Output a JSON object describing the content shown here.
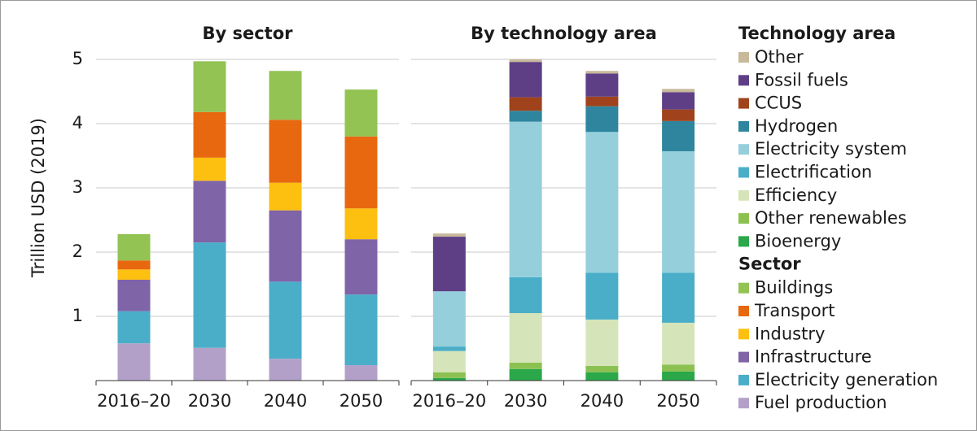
{
  "chart_data": [
    {
      "type": "bar",
      "stacked": true,
      "title": "By sector",
      "y_label": "Trillion USD (2019)",
      "legend_title": "Sector",
      "categories": [
        "2016–20",
        "2030",
        "2040",
        "2050"
      ],
      "ylim": [
        0,
        5.5
      ],
      "yticks": [
        1,
        2,
        3,
        4,
        5
      ],
      "grid": true,
      "series": [
        {
          "name": "Fuel production",
          "color": "#b3a0c9",
          "values": [
            0.58,
            0.51,
            0.34,
            0.24
          ]
        },
        {
          "name": "Electricity generation",
          "color": "#4aaec8",
          "values": [
            0.5,
            1.64,
            1.2,
            1.1
          ]
        },
        {
          "name": "Infrastructure",
          "color": "#8064a8",
          "values": [
            0.49,
            0.96,
            1.11,
            0.86
          ]
        },
        {
          "name": "Industry",
          "color": "#fdc010",
          "values": [
            0.16,
            0.36,
            0.43,
            0.48
          ]
        },
        {
          "name": "Transport",
          "color": "#e8680f",
          "values": [
            0.14,
            0.71,
            0.98,
            1.12
          ]
        },
        {
          "name": "Buildings",
          "color": "#92c353",
          "values": [
            0.41,
            0.79,
            0.76,
            0.73
          ]
        }
      ]
    },
    {
      "type": "bar",
      "stacked": true,
      "title": "By technology area",
      "legend_title": "Technology area",
      "categories": [
        "2016–20",
        "2030",
        "2040",
        "2050"
      ],
      "ylim": [
        0,
        5.5
      ],
      "yticks": [
        1,
        2,
        3,
        4,
        5
      ],
      "grid": true,
      "series": [
        {
          "name": "Bioenergy",
          "color": "#2aa84a",
          "values": [
            0.04,
            0.18,
            0.13,
            0.14
          ]
        },
        {
          "name": "Other renewables",
          "color": "#8cc152",
          "values": [
            0.09,
            0.1,
            0.1,
            0.11
          ]
        },
        {
          "name": "Efficiency",
          "color": "#d6e5b9",
          "values": [
            0.33,
            0.77,
            0.72,
            0.65
          ]
        },
        {
          "name": "Electrification",
          "color": "#4aaec8",
          "values": [
            0.07,
            0.56,
            0.73,
            0.78
          ]
        },
        {
          "name": "Electricity system",
          "color": "#95cfdc",
          "values": [
            0.86,
            2.42,
            2.19,
            1.89
          ]
        },
        {
          "name": "Hydrogen",
          "color": "#2f859e",
          "values": [
            0,
            0.17,
            0.4,
            0.47
          ]
        },
        {
          "name": "CCUS",
          "color": "#a0431c",
          "values": [
            0,
            0.21,
            0.15,
            0.18
          ]
        },
        {
          "name": "Fossil fuels",
          "color": "#5e3f86",
          "values": [
            0.85,
            0.55,
            0.36,
            0.27
          ]
        },
        {
          "name": "Other",
          "color": "#c8b99a",
          "values": [
            0.05,
            0.04,
            0.04,
            0.05
          ]
        }
      ]
    }
  ]
}
